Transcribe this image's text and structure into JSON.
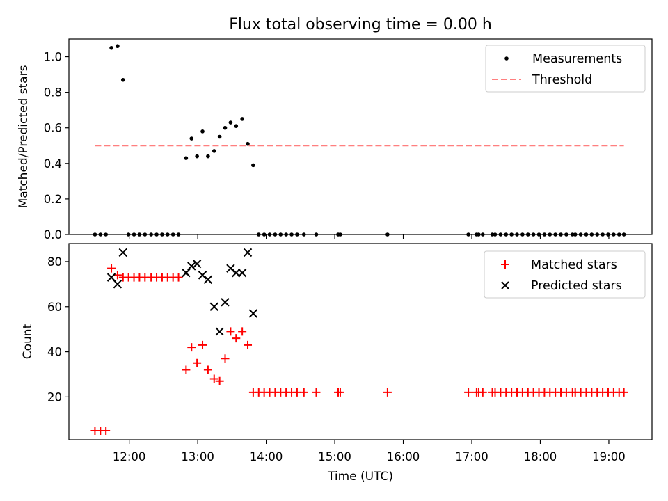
{
  "chart_data": [
    {
      "type": "scatter",
      "title": "Flux total observing time = 0.00 h",
      "xlabel": "",
      "ylabel": "Matched/Predicted stars",
      "ylim": [
        0,
        1.1
      ],
      "yticks": [
        0.0,
        0.2,
        0.4,
        0.6,
        0.8,
        1.0
      ],
      "ytick_labels": [
        "0.0",
        "0.2",
        "0.4",
        "0.6",
        "0.8",
        "1.0"
      ],
      "xlim_hours": [
        11.12,
        19.63
      ],
      "legend": "top-right",
      "series": [
        {
          "name": "Measurements",
          "marker": "dot",
          "color": "#000000",
          "x": [
            11.5,
            11.58,
            11.66,
            11.74,
            11.83,
            11.91,
            11.99,
            12.07,
            12.15,
            12.23,
            12.32,
            12.4,
            12.48,
            12.56,
            12.64,
            12.72,
            12.83,
            12.91,
            12.99,
            13.07,
            13.15,
            13.24,
            13.32,
            13.4,
            13.48,
            13.56,
            13.65,
            13.73,
            13.81,
            13.89,
            13.97,
            14.05,
            14.13,
            14.21,
            14.29,
            14.37,
            14.45,
            14.55,
            14.73,
            15.05,
            15.08,
            15.77,
            16.95,
            17.07,
            17.1,
            17.16,
            17.3,
            17.34,
            17.42,
            17.5,
            17.58,
            17.66,
            17.74,
            17.82,
            17.9,
            17.98,
            18.06,
            18.14,
            18.22,
            18.3,
            18.38,
            18.47,
            18.51,
            18.59,
            18.67,
            18.75,
            18.83,
            18.91,
            18.99,
            19.07,
            19.15,
            19.22
          ],
          "y": [
            0,
            0,
            0,
            1.05,
            1.06,
            0.87,
            0,
            0,
            0,
            0,
            0,
            0,
            0,
            0,
            0,
            0,
            0.43,
            0.54,
            0.44,
            0.58,
            0.44,
            0.47,
            0.55,
            0.6,
            0.63,
            0.61,
            0.65,
            0.51,
            0.39,
            0,
            0,
            0,
            0,
            0,
            0,
            0,
            0,
            0,
            0,
            0,
            0,
            0,
            0,
            0,
            0,
            0,
            0,
            0,
            0,
            0,
            0,
            0,
            0,
            0,
            0,
            0,
            0,
            0,
            0,
            0,
            0,
            0,
            0,
            0,
            0,
            0,
            0,
            0,
            0,
            0,
            0,
            0
          ]
        },
        {
          "name": "Threshold",
          "style": "dashed",
          "color": "#ff7f7f",
          "x": [
            11.5,
            19.22
          ],
          "y": [
            0.5,
            0.5
          ]
        }
      ]
    },
    {
      "type": "scatter",
      "xlabel": "Time (UTC)",
      "ylabel": "Count",
      "ylim": [
        1,
        88
      ],
      "yticks": [
        20,
        40,
        60,
        80
      ],
      "ytick_labels": [
        "20",
        "40",
        "60",
        "80"
      ],
      "xlim_hours": [
        11.12,
        19.63
      ],
      "xticks_hours": [
        12,
        13,
        14,
        15,
        16,
        17,
        18,
        19
      ],
      "xtick_labels": [
        "12:00",
        "13:00",
        "14:00",
        "15:00",
        "16:00",
        "17:00",
        "18:00",
        "19:00"
      ],
      "legend": "top-right",
      "series": [
        {
          "name": "Matched stars",
          "marker": "plus",
          "color": "#ff0000",
          "x": [
            11.5,
            11.58,
            11.66,
            11.74,
            11.83,
            11.91,
            11.99,
            12.07,
            12.15,
            12.23,
            12.32,
            12.4,
            12.48,
            12.56,
            12.64,
            12.72,
            12.83,
            12.91,
            12.99,
            13.07,
            13.15,
            13.24,
            13.32,
            13.4,
            13.48,
            13.56,
            13.65,
            13.73,
            13.81,
            13.89,
            13.97,
            14.05,
            14.13,
            14.21,
            14.29,
            14.37,
            14.45,
            14.55,
            14.73,
            15.05,
            15.08,
            15.77,
            16.95,
            17.07,
            17.1,
            17.16,
            17.3,
            17.34,
            17.42,
            17.5,
            17.58,
            17.66,
            17.74,
            17.82,
            17.9,
            17.98,
            18.06,
            18.14,
            18.22,
            18.3,
            18.38,
            18.47,
            18.51,
            18.59,
            18.67,
            18.75,
            18.83,
            18.91,
            18.99,
            19.07,
            19.15,
            19.22
          ],
          "y": [
            5,
            5,
            5,
            77,
            74,
            73,
            73,
            73,
            73,
            73,
            73,
            73,
            73,
            73,
            73,
            73,
            32,
            42,
            35,
            43,
            32,
            28,
            27,
            37,
            49,
            46,
            49,
            43,
            22,
            22,
            22,
            22,
            22,
            22,
            22,
            22,
            22,
            22,
            22,
            22,
            22,
            22,
            22,
            22,
            22,
            22,
            22,
            22,
            22,
            22,
            22,
            22,
            22,
            22,
            22,
            22,
            22,
            22,
            22,
            22,
            22,
            22,
            22,
            22,
            22,
            22,
            22,
            22,
            22,
            22,
            22,
            22
          ]
        },
        {
          "name": "Predicted stars",
          "marker": "x",
          "color": "#000000",
          "x": [
            11.74,
            11.83,
            11.91,
            12.83,
            12.91,
            12.99,
            13.07,
            13.15,
            13.24,
            13.32,
            13.4,
            13.48,
            13.56,
            13.65,
            13.73,
            13.81
          ],
          "y": [
            73,
            70,
            84,
            75,
            78,
            79,
            74,
            72,
            60,
            49,
            62,
            77,
            75,
            75,
            84,
            57
          ]
        }
      ]
    }
  ]
}
